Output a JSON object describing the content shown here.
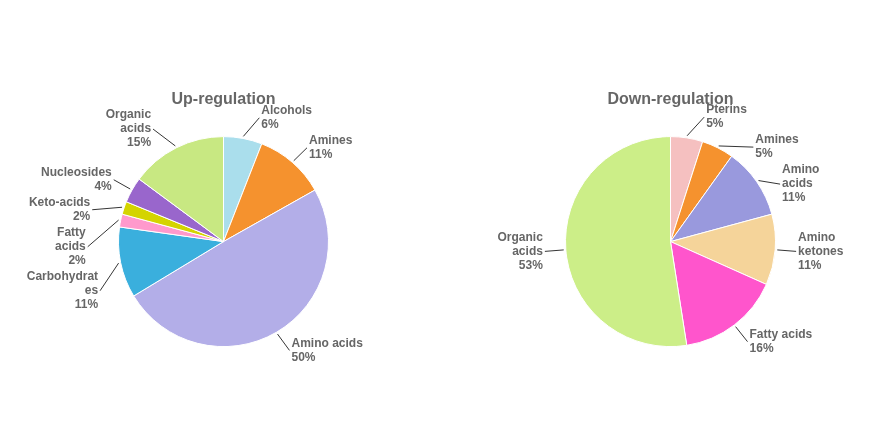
{
  "chart_data": [
    {
      "type": "pie",
      "title": "Up-regulation",
      "categories": [
        "Alcohols",
        "Amines",
        "Amino acids",
        "Carbohydrat\nes",
        "Fatty\nacids",
        "Keto-acids",
        "Nucleosides",
        "Organic\nacids"
      ],
      "values": [
        6,
        11,
        50,
        11,
        2,
        2,
        4,
        15
      ],
      "value_labels": [
        "6%",
        "11%",
        "50%",
        "11%",
        "2%",
        "2%",
        "4%",
        "15%"
      ],
      "colors": [
        "#aadeec",
        "#f5922e",
        "#b3aee8",
        "#3aafdd",
        "#ff99cc",
        "#d4d400",
        "#9966cc",
        "#c8e882"
      ],
      "data_labels": true
    },
    {
      "type": "pie",
      "title": "Down-regulation",
      "categories": [
        "Pterins",
        "Amines",
        "Amino\nacids",
        "Amino\nketones",
        "Fatty acids",
        "Organic\nacids"
      ],
      "values": [
        5,
        5,
        11,
        11,
        16,
        53
      ],
      "value_labels": [
        "5%",
        "5%",
        "11%",
        "11%",
        "16%",
        "53%"
      ],
      "colors": [
        "#f5c0c0",
        "#f5922e",
        "#9999dd",
        "#f5d49a",
        "#ff55cc",
        "#ccee88"
      ],
      "data_labels": true
    }
  ]
}
